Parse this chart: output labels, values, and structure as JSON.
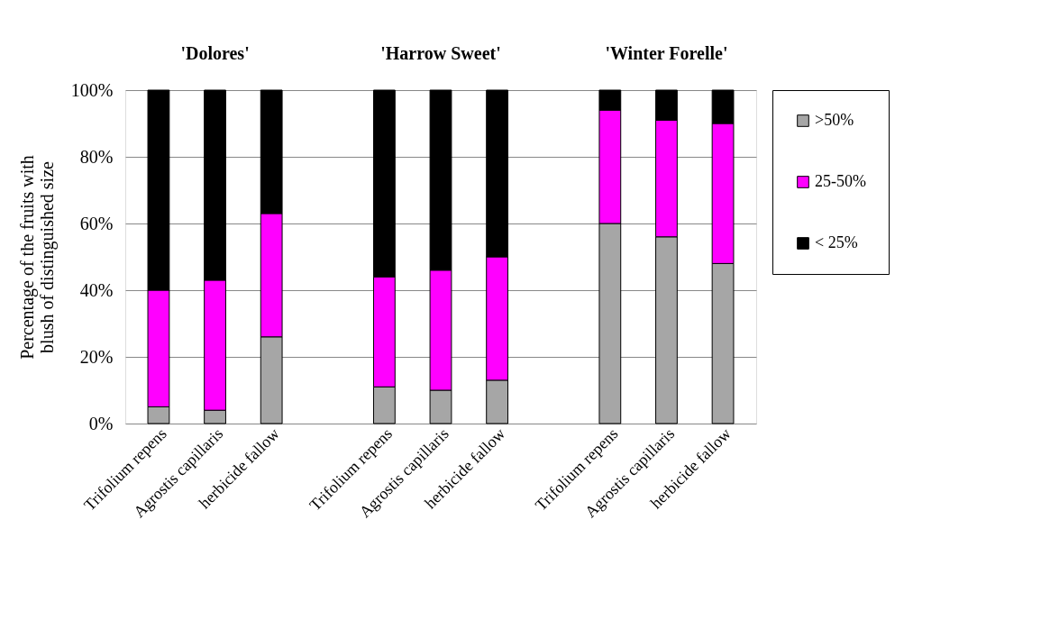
{
  "chart_data": {
    "type": "bar",
    "stacked": true,
    "ylabel": "Percentage of the fruits with blush of distinguished size",
    "categories": [
      "Trifolium repens",
      "Agrostis capillaris",
      "herbicide fallow",
      null,
      "Trifolium repens",
      "Agrostis capillaris",
      "herbicide fallow",
      null,
      "Trifolium repens",
      "Agrostis capillaris",
      "herbicide fallow"
    ],
    "series": [
      {
        "name": ">50%",
        "color": "#a6a6a6",
        "values": [
          5,
          4,
          26,
          null,
          11,
          10,
          13,
          null,
          60,
          56,
          48
        ]
      },
      {
        "name": "25-50%",
        "color": "#ff00ff",
        "values": [
          35,
          39,
          37,
          null,
          33,
          36,
          37,
          null,
          34,
          35,
          42
        ]
      },
      {
        "name": "< 25%",
        "color": "#000000",
        "values": [
          60,
          57,
          37,
          null,
          56,
          54,
          50,
          null,
          6,
          9,
          10
        ]
      }
    ],
    "annotations": [
      "'Dolores'",
      "'Harrow Sweet'",
      "'Winter Forelle'"
    ],
    "ylim": [
      0,
      100
    ],
    "yticks": [
      {
        "value": 0,
        "label": "0%"
      },
      {
        "value": 20,
        "label": "20%"
      },
      {
        "value": 40,
        "label": "40%"
      },
      {
        "value": 60,
        "label": "60%"
      },
      {
        "value": 80,
        "label": "80%"
      },
      {
        "value": 100,
        "label": "100%"
      }
    ],
    "grid": "y",
    "legend": "right"
  }
}
